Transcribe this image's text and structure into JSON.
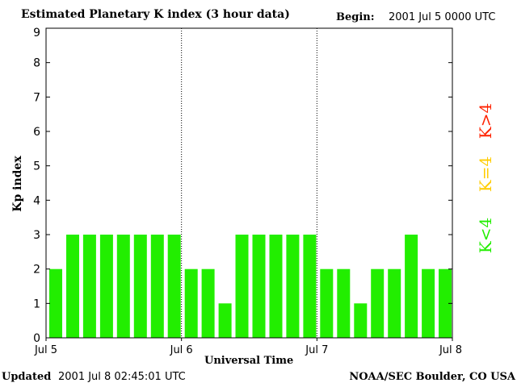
{
  "header": {
    "title": "Estimated Planetary K index (3 hour data)",
    "begin_label": "Begin:",
    "begin_value": "2001 Jul 5 0000 UTC"
  },
  "footer": {
    "updated_label": "Updated",
    "updated_value": "2001 Jul  8 02:45:01 UTC",
    "credit": "NOAA/SEC Boulder, CO USA"
  },
  "legend": {
    "low": "K<4",
    "mid": "K=4",
    "high": "K>4",
    "colors": {
      "low": "#22ee00",
      "mid": "#ffcc00",
      "high": "#ff2200"
    }
  },
  "chart_data": {
    "type": "bar",
    "title": "Estimated Planetary K index (3 hour data)",
    "xlabel": "Universal Time",
    "ylabel": "Kp index",
    "ylim": [
      0,
      9
    ],
    "yticks": [
      "0",
      "1",
      "2",
      "3",
      "4",
      "5",
      "6",
      "7",
      "8",
      "9"
    ],
    "xticks": [
      "Jul 5",
      "Jul 6",
      "Jul 7",
      "Jul 8"
    ],
    "grid": "vertical dotted at day boundaries",
    "bar_color": "#22ee00",
    "values": [
      2,
      3,
      3,
      3,
      3,
      3,
      3,
      3,
      2,
      2,
      1,
      3,
      3,
      3,
      3,
      3,
      2,
      2,
      1,
      2,
      2,
      3,
      2,
      2
    ]
  }
}
